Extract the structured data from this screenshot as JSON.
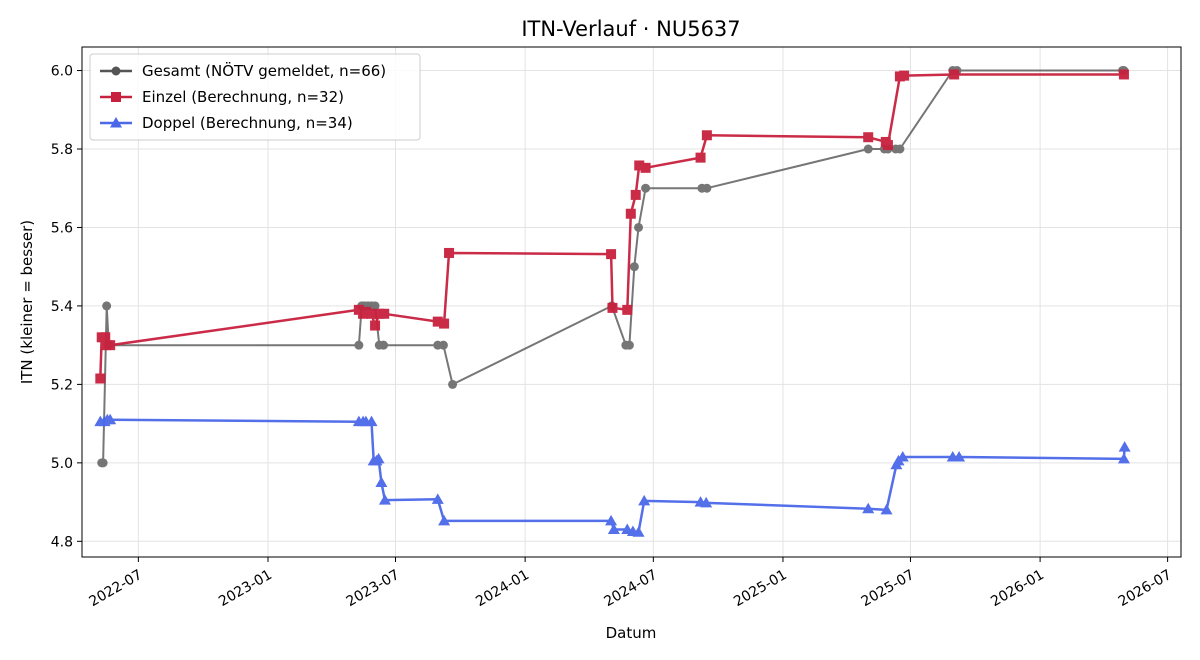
{
  "chart_data": {
    "type": "line",
    "title": "ITN-Verlauf · NU5637",
    "xlabel": "Datum",
    "ylabel": "ITN  (kleiner = besser)",
    "x_type": "date",
    "xlim": [
      "2022-04-12",
      "2026-07-20"
    ],
    "ylim": [
      4.76,
      6.06
    ],
    "x_ticks": [
      "2022-07",
      "2023-01",
      "2023-07",
      "2024-01",
      "2024-07",
      "2025-01",
      "2025-07",
      "2026-01",
      "2026-07"
    ],
    "y_ticks": [
      "4.8",
      "5.0",
      "5.2",
      "5.4",
      "5.6",
      "5.8",
      "6.0"
    ],
    "grid": true,
    "legend_position": "top-left",
    "series": [
      {
        "name": "Gesamt (NÖTV gemeldet, n=66)",
        "color": "#555555",
        "marker": "circle",
        "points": [
          [
            "2022-05-10",
            5.0
          ],
          [
            "2022-05-12",
            5.0
          ],
          [
            "2022-05-17",
            5.4
          ],
          [
            "2022-05-20",
            5.3
          ],
          [
            "2023-05-10",
            5.3
          ],
          [
            "2023-05-14",
            5.4
          ],
          [
            "2023-05-18",
            5.4
          ],
          [
            "2023-05-23",
            5.4
          ],
          [
            "2023-05-28",
            5.4
          ],
          [
            "2023-06-02",
            5.4
          ],
          [
            "2023-06-08",
            5.3
          ],
          [
            "2023-06-14",
            5.3
          ],
          [
            "2023-08-30",
            5.3
          ],
          [
            "2023-09-07",
            5.3
          ],
          [
            "2023-09-20",
            5.2
          ],
          [
            "2024-05-03",
            5.4
          ],
          [
            "2024-05-23",
            5.3
          ],
          [
            "2024-05-28",
            5.3
          ],
          [
            "2024-06-04",
            5.5
          ],
          [
            "2024-06-10",
            5.6
          ],
          [
            "2024-06-20",
            5.7
          ],
          [
            "2024-09-08",
            5.7
          ],
          [
            "2024-09-15",
            5.7
          ],
          [
            "2025-05-02",
            5.8
          ],
          [
            "2025-05-25",
            5.8
          ],
          [
            "2025-05-30",
            5.8
          ],
          [
            "2025-06-10",
            5.8
          ],
          [
            "2025-06-16",
            5.8
          ],
          [
            "2025-08-30",
            6.0
          ],
          [
            "2025-09-05",
            6.0
          ],
          [
            "2026-04-28",
            6.0
          ],
          [
            "2026-04-30",
            6.0
          ]
        ]
      },
      {
        "name": "Einzel (Berechnung, n=32)",
        "color": "#c8203e",
        "marker": "square",
        "points": [
          [
            "2022-05-08",
            5.215
          ],
          [
            "2022-05-10",
            5.32
          ],
          [
            "2022-05-15",
            5.32
          ],
          [
            "2022-05-17",
            5.3
          ],
          [
            "2022-05-22",
            5.3
          ],
          [
            "2023-05-10",
            5.39
          ],
          [
            "2023-05-16",
            5.38
          ],
          [
            "2023-05-20",
            5.385
          ],
          [
            "2023-05-28",
            5.38
          ],
          [
            "2023-06-02",
            5.35
          ],
          [
            "2023-06-08",
            5.38
          ],
          [
            "2023-06-15",
            5.38
          ],
          [
            "2023-08-30",
            5.36
          ],
          [
            "2023-09-08",
            5.355
          ],
          [
            "2023-09-15",
            5.535
          ],
          [
            "2024-05-02",
            5.532
          ],
          [
            "2024-05-04",
            5.395
          ],
          [
            "2024-05-25",
            5.39
          ],
          [
            "2024-05-30",
            5.635
          ],
          [
            "2024-06-06",
            5.683
          ],
          [
            "2024-06-11",
            5.758
          ],
          [
            "2024-06-20",
            5.752
          ],
          [
            "2024-09-06",
            5.778
          ],
          [
            "2024-09-15",
            5.835
          ],
          [
            "2025-05-02",
            5.83
          ],
          [
            "2025-05-27",
            5.818
          ],
          [
            "2025-05-30",
            5.81
          ],
          [
            "2025-06-16",
            5.985
          ],
          [
            "2025-06-22",
            5.987
          ],
          [
            "2025-09-01",
            5.99
          ],
          [
            "2026-04-30",
            5.99
          ]
        ]
      },
      {
        "name": "Doppel (Berechnung, n=34)",
        "color": "#4a68e8",
        "marker": "triangle",
        "points": [
          [
            "2022-05-08",
            5.105
          ],
          [
            "2022-05-14",
            5.105
          ],
          [
            "2022-05-18",
            5.11
          ],
          [
            "2022-05-22",
            5.11
          ],
          [
            "2023-05-10",
            5.105
          ],
          [
            "2023-05-16",
            5.105
          ],
          [
            "2023-05-20",
            5.105
          ],
          [
            "2023-05-28",
            5.105
          ],
          [
            "2023-05-31",
            5.005
          ],
          [
            "2023-06-04",
            5.005
          ],
          [
            "2023-06-07",
            5.01
          ],
          [
            "2023-06-11",
            4.95
          ],
          [
            "2023-06-16",
            4.905
          ],
          [
            "2023-08-30",
            4.907
          ],
          [
            "2023-09-08",
            4.852
          ],
          [
            "2024-05-02",
            4.852
          ],
          [
            "2024-05-06",
            4.83
          ],
          [
            "2024-05-25",
            4.83
          ],
          [
            "2024-06-02",
            4.825
          ],
          [
            "2024-06-10",
            4.823
          ],
          [
            "2024-06-18",
            4.903
          ],
          [
            "2024-09-06",
            4.9
          ],
          [
            "2024-09-14",
            4.898
          ],
          [
            "2025-05-02",
            4.883
          ],
          [
            "2025-05-28",
            4.88
          ],
          [
            "2025-06-11",
            4.995
          ],
          [
            "2025-06-14",
            5.005
          ],
          [
            "2025-06-20",
            5.015
          ],
          [
            "2025-08-30",
            5.015
          ],
          [
            "2025-09-08",
            5.015
          ],
          [
            "2026-04-30",
            5.01
          ],
          [
            "2026-05-01",
            5.04
          ]
        ]
      }
    ]
  }
}
